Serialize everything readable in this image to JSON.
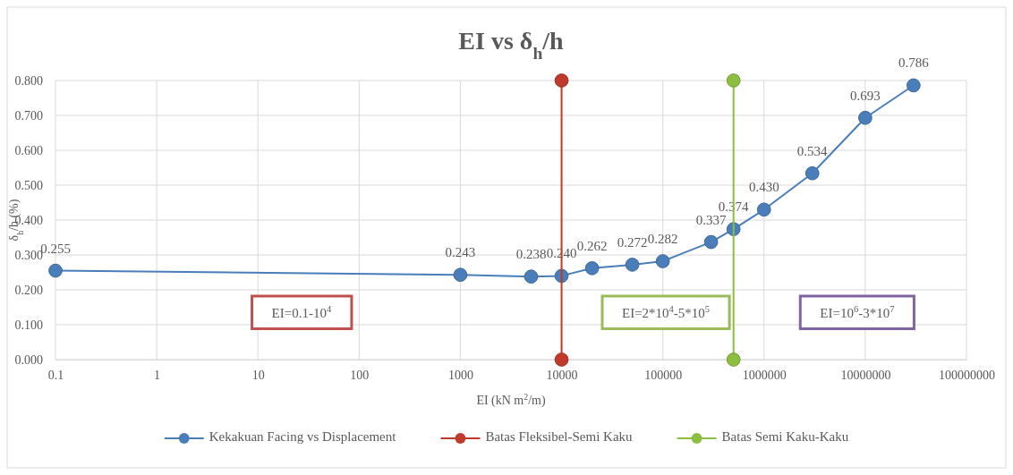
{
  "chart_data": {
    "type": "line",
    "title": "EI vs δ$_{h}$/h",
    "xlabel": "EI (kN m$^{2}$/m)",
    "ylabel": "δ$_{h}$/h (%)",
    "log": "x",
    "xlim": [
      0.1,
      100000000
    ],
    "xticks": [
      0.1,
      1,
      10,
      100,
      1000,
      10000,
      100000,
      1000000,
      10000000,
      100000000
    ],
    "ylim": [
      0,
      0.8
    ],
    "yticks": [
      {
        "value": 0,
        "label": "0.000"
      },
      {
        "value": 0.1,
        "label": "0.100"
      },
      {
        "value": 0.2,
        "label": "0.200"
      },
      {
        "value": 0.3,
        "label": "0.300"
      },
      {
        "value": 0.4,
        "label": "0.400"
      },
      {
        "value": 0.5,
        "label": "0.500"
      },
      {
        "value": 0.6,
        "label": "0.600"
      },
      {
        "value": 0.7,
        "label": "0.700"
      },
      {
        "value": 0.8,
        "label": "0.800"
      }
    ],
    "grid": true,
    "legend": "bottom",
    "marker": "circle",
    "line_style": "solid",
    "series": [
      {
        "name": "Kekakuan Facing vs Displacement",
        "color": "#4a7ebb",
        "x": [
          0.1,
          1000,
          5000,
          10000,
          20000,
          50000,
          100000,
          300000,
          500000,
          1000000,
          3000000,
          10000000,
          30000000
        ],
        "values": [
          0.255,
          0.243,
          0.238,
          0.24,
          0.262,
          0.272,
          0.282,
          0.337,
          0.374,
          0.43,
          0.534,
          0.693,
          0.786
        ],
        "value_labels": [
          "0.255",
          "0.243",
          "0.238",
          "0.240",
          "0.262",
          "0.272",
          "0.282",
          "0.337",
          "0.374",
          "0.430",
          "0.534",
          "0.693",
          "0.786"
        ]
      },
      {
        "name": "Batas Fleksibel-Semi Kaku",
        "color": "#c0392b",
        "x": [
          10000,
          10000
        ],
        "values": [
          0,
          0.8
        ]
      },
      {
        "name": "Batas Semi Kaku-Kaku",
        "color": "#8cbf3f",
        "x": [
          500000,
          500000
        ],
        "values": [
          0,
          0.8
        ]
      }
    ],
    "annotations": [
      "EI=0.1-10$^{4}$",
      "EI=2*10$^{4}$-5*10$^{5}$",
      "EI=10$^{6}$-3*10$^{7}$"
    ]
  }
}
